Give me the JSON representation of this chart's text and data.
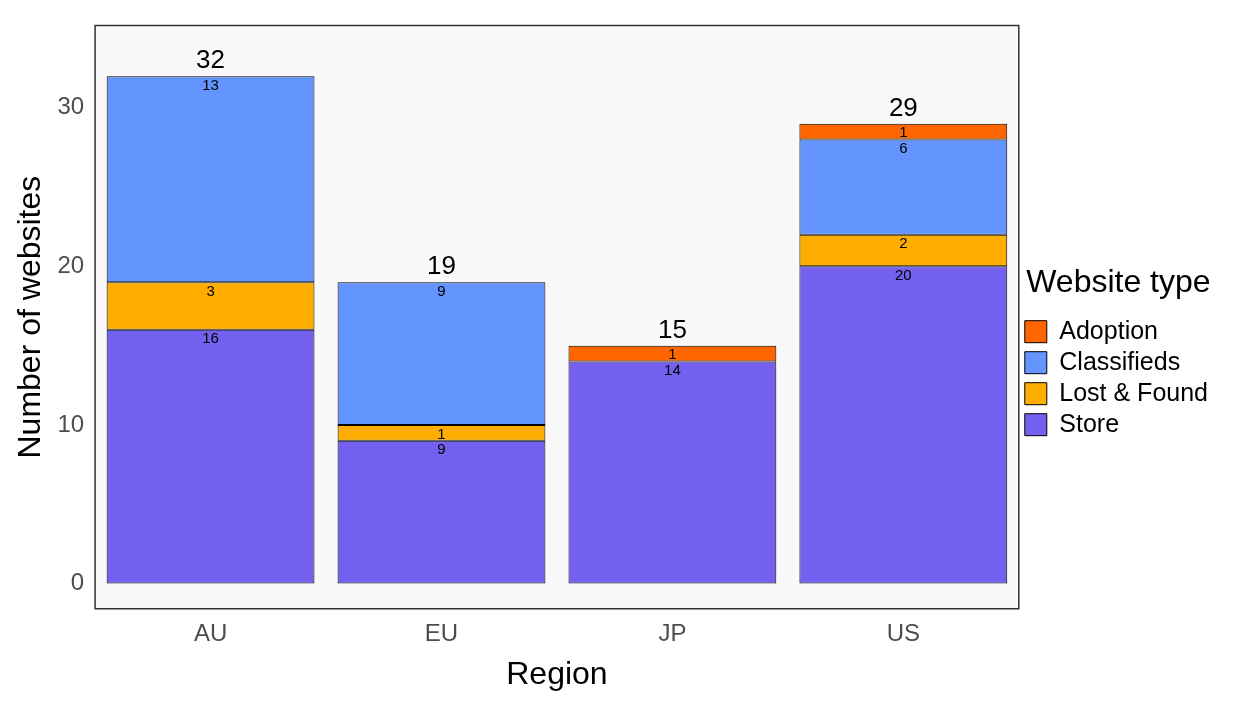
{
  "chart_data": {
    "type": "bar",
    "stacked": true,
    "xlabel": "Region",
    "ylabel": "Number of websites",
    "legend_title": "Website type",
    "legend": "right",
    "data_labels": true,
    "categories": [
      "AU",
      "EU",
      "JP",
      "US"
    ],
    "series": [
      {
        "name": "Store",
        "color": "#7460ee",
        "values": [
          16,
          9,
          14,
          20
        ]
      },
      {
        "name": "Lost & Found",
        "color": "#ffad00",
        "values": [
          3,
          1,
          null,
          2
        ]
      },
      {
        "name": "Classifieds",
        "color": "#6495ff",
        "values": [
          13,
          9,
          null,
          6
        ]
      },
      {
        "name": "Adoption",
        "color": "#ff6600",
        "values": [
          null,
          null,
          1,
          1
        ]
      }
    ],
    "totals": [
      "32",
      "19",
      "15",
      "29"
    ],
    "ylim": [
      -1.6,
      35.2
    ],
    "yticks": [
      0,
      10,
      20,
      30
    ]
  }
}
